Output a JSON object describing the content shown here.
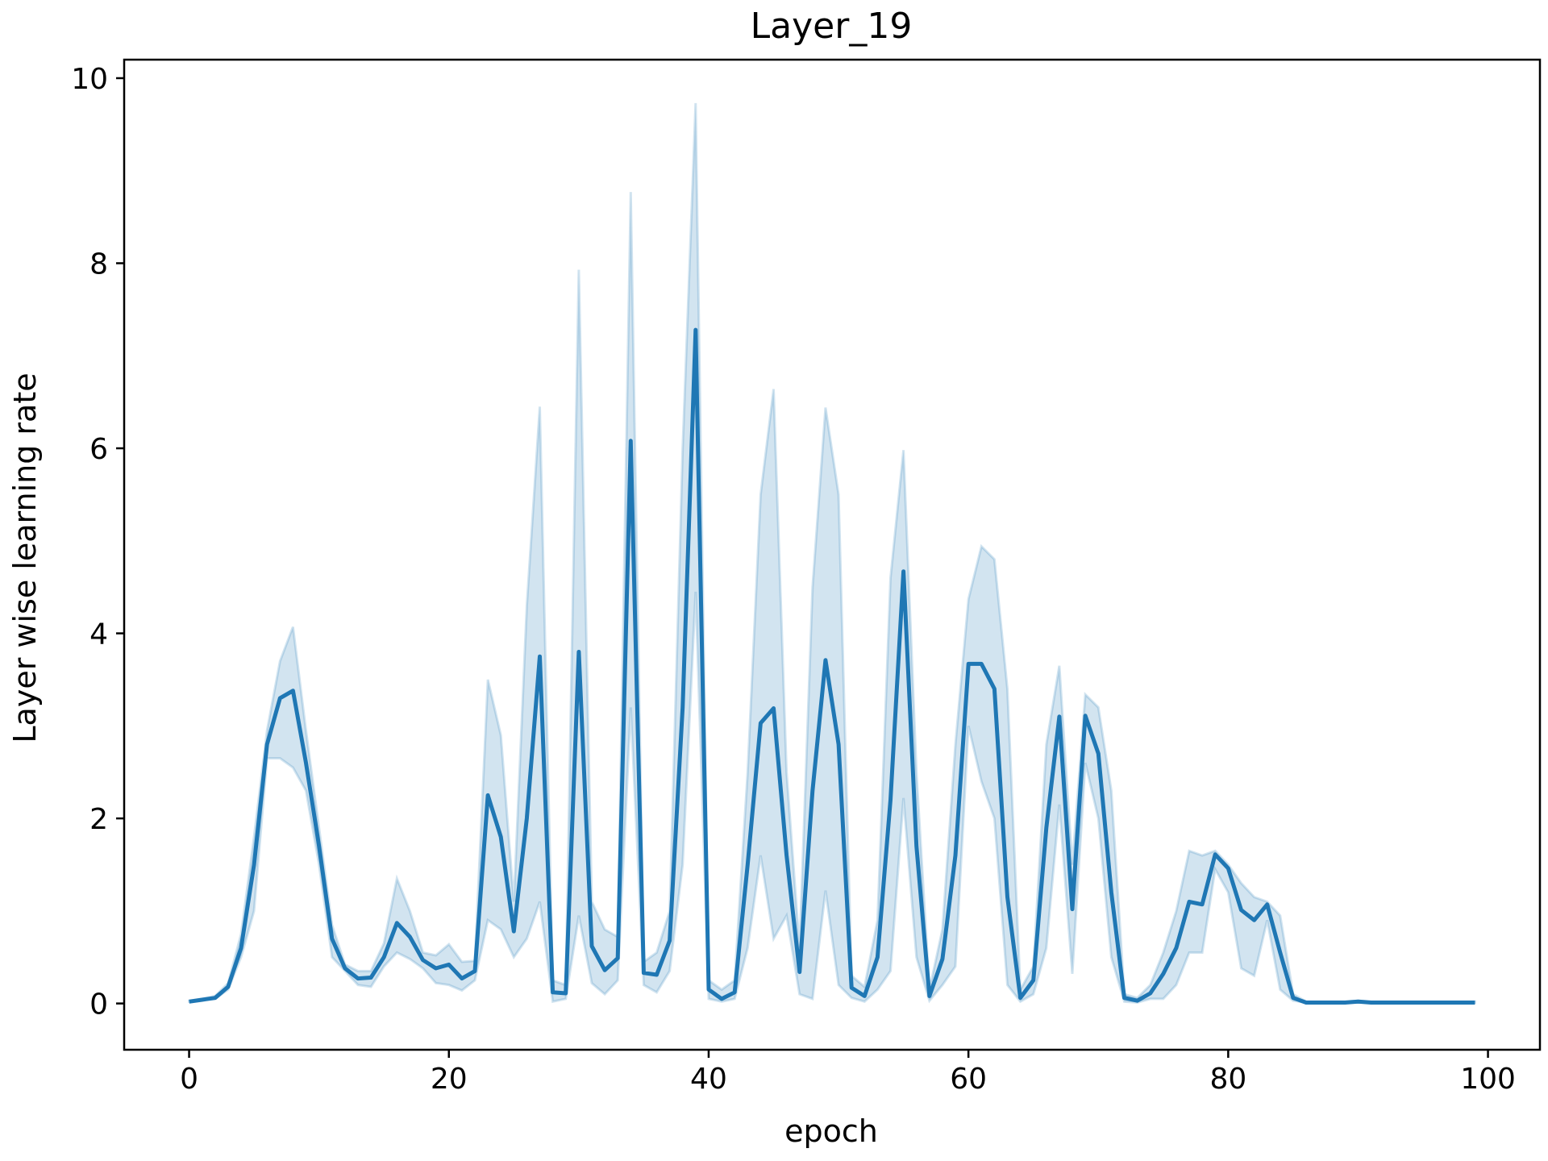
{
  "chart_data": {
    "type": "line",
    "title": "Layer_19",
    "xlabel": "epoch",
    "ylabel": "Layer wise learning rate",
    "xlim": [
      -5,
      104
    ],
    "ylim": [
      -0.5,
      10.2
    ],
    "xticks": [
      0,
      20,
      40,
      60,
      80,
      100
    ],
    "yticks": [
      0,
      2,
      4,
      6,
      8,
      10
    ],
    "grid": false,
    "legend": "none",
    "line_color": "#1f77b4",
    "band_color": "#1f77b4",
    "series": [
      {
        "x": [
          0,
          1,
          2,
          3,
          4,
          5,
          6,
          7,
          8,
          9,
          10,
          11,
          12,
          13,
          14,
          15,
          16,
          17,
          18,
          19,
          20,
          21,
          22,
          23,
          24,
          25,
          26,
          27,
          28,
          29,
          30,
          31,
          32,
          33,
          34,
          35,
          36,
          37,
          38,
          39,
          40,
          41,
          42,
          43,
          44,
          45,
          46,
          47,
          48,
          49,
          50,
          51,
          52,
          53,
          54,
          55,
          56,
          57,
          58,
          59,
          60,
          61,
          62,
          63,
          64,
          65,
          66,
          67,
          68,
          69,
          70,
          71,
          72,
          73,
          74,
          75,
          76,
          77,
          78,
          79,
          80,
          81,
          82,
          83,
          84,
          85,
          86,
          87,
          88,
          89,
          90,
          91,
          92,
          93,
          94,
          95,
          96,
          97,
          98,
          99
        ],
        "y": [
          0.02,
          0.04,
          0.06,
          0.18,
          0.6,
          1.5,
          2.8,
          3.3,
          3.38,
          2.6,
          1.7,
          0.7,
          0.38,
          0.27,
          0.28,
          0.5,
          0.87,
          0.72,
          0.47,
          0.38,
          0.42,
          0.27,
          0.35,
          2.25,
          1.8,
          0.78,
          2.0,
          3.75,
          0.12,
          0.11,
          3.8,
          0.62,
          0.36,
          0.49,
          6.08,
          0.33,
          0.31,
          0.68,
          3.2,
          7.28,
          0.15,
          0.05,
          0.12,
          1.5,
          3.03,
          3.19,
          1.6,
          0.34,
          2.3,
          3.71,
          2.8,
          0.17,
          0.08,
          0.5,
          2.2,
          4.67,
          1.7,
          0.08,
          0.48,
          1.6,
          3.67,
          3.67,
          3.4,
          1.15,
          0.06,
          0.25,
          1.9,
          3.1,
          1.02,
          3.11,
          2.7,
          1.2,
          0.06,
          0.03,
          0.11,
          0.32,
          0.6,
          1.1,
          1.07,
          1.61,
          1.46,
          1.01,
          0.9,
          1.07,
          0.55,
          0.06,
          0.01,
          0.01,
          0.01,
          0.01,
          0.02,
          0.01,
          0.01,
          0.01,
          0.01,
          0.01,
          0.01,
          0.01,
          0.01,
          0.01
        ],
        "lower": [
          0.02,
          0.04,
          0.05,
          0.15,
          0.5,
          1.0,
          2.65,
          2.65,
          2.55,
          2.3,
          1.5,
          0.5,
          0.35,
          0.2,
          0.18,
          0.4,
          0.55,
          0.48,
          0.38,
          0.22,
          0.2,
          0.14,
          0.25,
          0.9,
          0.8,
          0.5,
          0.7,
          1.1,
          0.02,
          0.05,
          0.95,
          0.22,
          0.1,
          0.25,
          3.2,
          0.2,
          0.12,
          0.35,
          1.5,
          4.45,
          0.05,
          0.02,
          0.05,
          0.6,
          1.6,
          0.7,
          0.95,
          0.1,
          0.05,
          1.22,
          0.2,
          0.06,
          0.02,
          0.15,
          0.35,
          2.22,
          0.5,
          0.03,
          0.2,
          0.4,
          3.0,
          2.4,
          2.0,
          0.2,
          0.02,
          0.1,
          0.6,
          2.15,
          0.32,
          2.6,
          2.0,
          0.5,
          0.02,
          0.01,
          0.05,
          0.05,
          0.2,
          0.55,
          0.55,
          1.45,
          1.2,
          0.38,
          0.3,
          0.9,
          0.15,
          0.03,
          0.01,
          0.01,
          0.01,
          0.01,
          0.01,
          0.01,
          0.01,
          0.01,
          0.01,
          0.01,
          0.01,
          0.01,
          0.01,
          0.01
        ],
        "upper": [
          0.03,
          0.05,
          0.08,
          0.22,
          0.75,
          1.8,
          2.95,
          3.7,
          4.07,
          2.95,
          1.9,
          0.85,
          0.42,
          0.35,
          0.35,
          0.65,
          1.35,
          1.0,
          0.55,
          0.52,
          0.64,
          0.45,
          0.46,
          3.5,
          2.9,
          1.1,
          4.3,
          6.45,
          0.25,
          0.2,
          7.93,
          1.1,
          0.8,
          0.72,
          8.77,
          0.45,
          0.55,
          1.0,
          6.0,
          9.73,
          0.25,
          0.15,
          0.25,
          2.5,
          5.5,
          6.64,
          2.5,
          0.6,
          4.5,
          6.44,
          5.5,
          0.3,
          0.18,
          0.9,
          4.6,
          5.98,
          2.5,
          0.15,
          0.8,
          2.8,
          4.37,
          4.94,
          4.8,
          3.4,
          0.15,
          0.4,
          2.8,
          3.65,
          1.5,
          3.34,
          3.2,
          2.3,
          0.1,
          0.06,
          0.2,
          0.55,
          1.0,
          1.65,
          1.6,
          1.65,
          1.5,
          1.3,
          1.15,
          1.1,
          0.95,
          0.1,
          0.02,
          0.02,
          0.02,
          0.02,
          0.03,
          0.02,
          0.02,
          0.02,
          0.02,
          0.02,
          0.02,
          0.02,
          0.02,
          0.02
        ]
      }
    ]
  }
}
